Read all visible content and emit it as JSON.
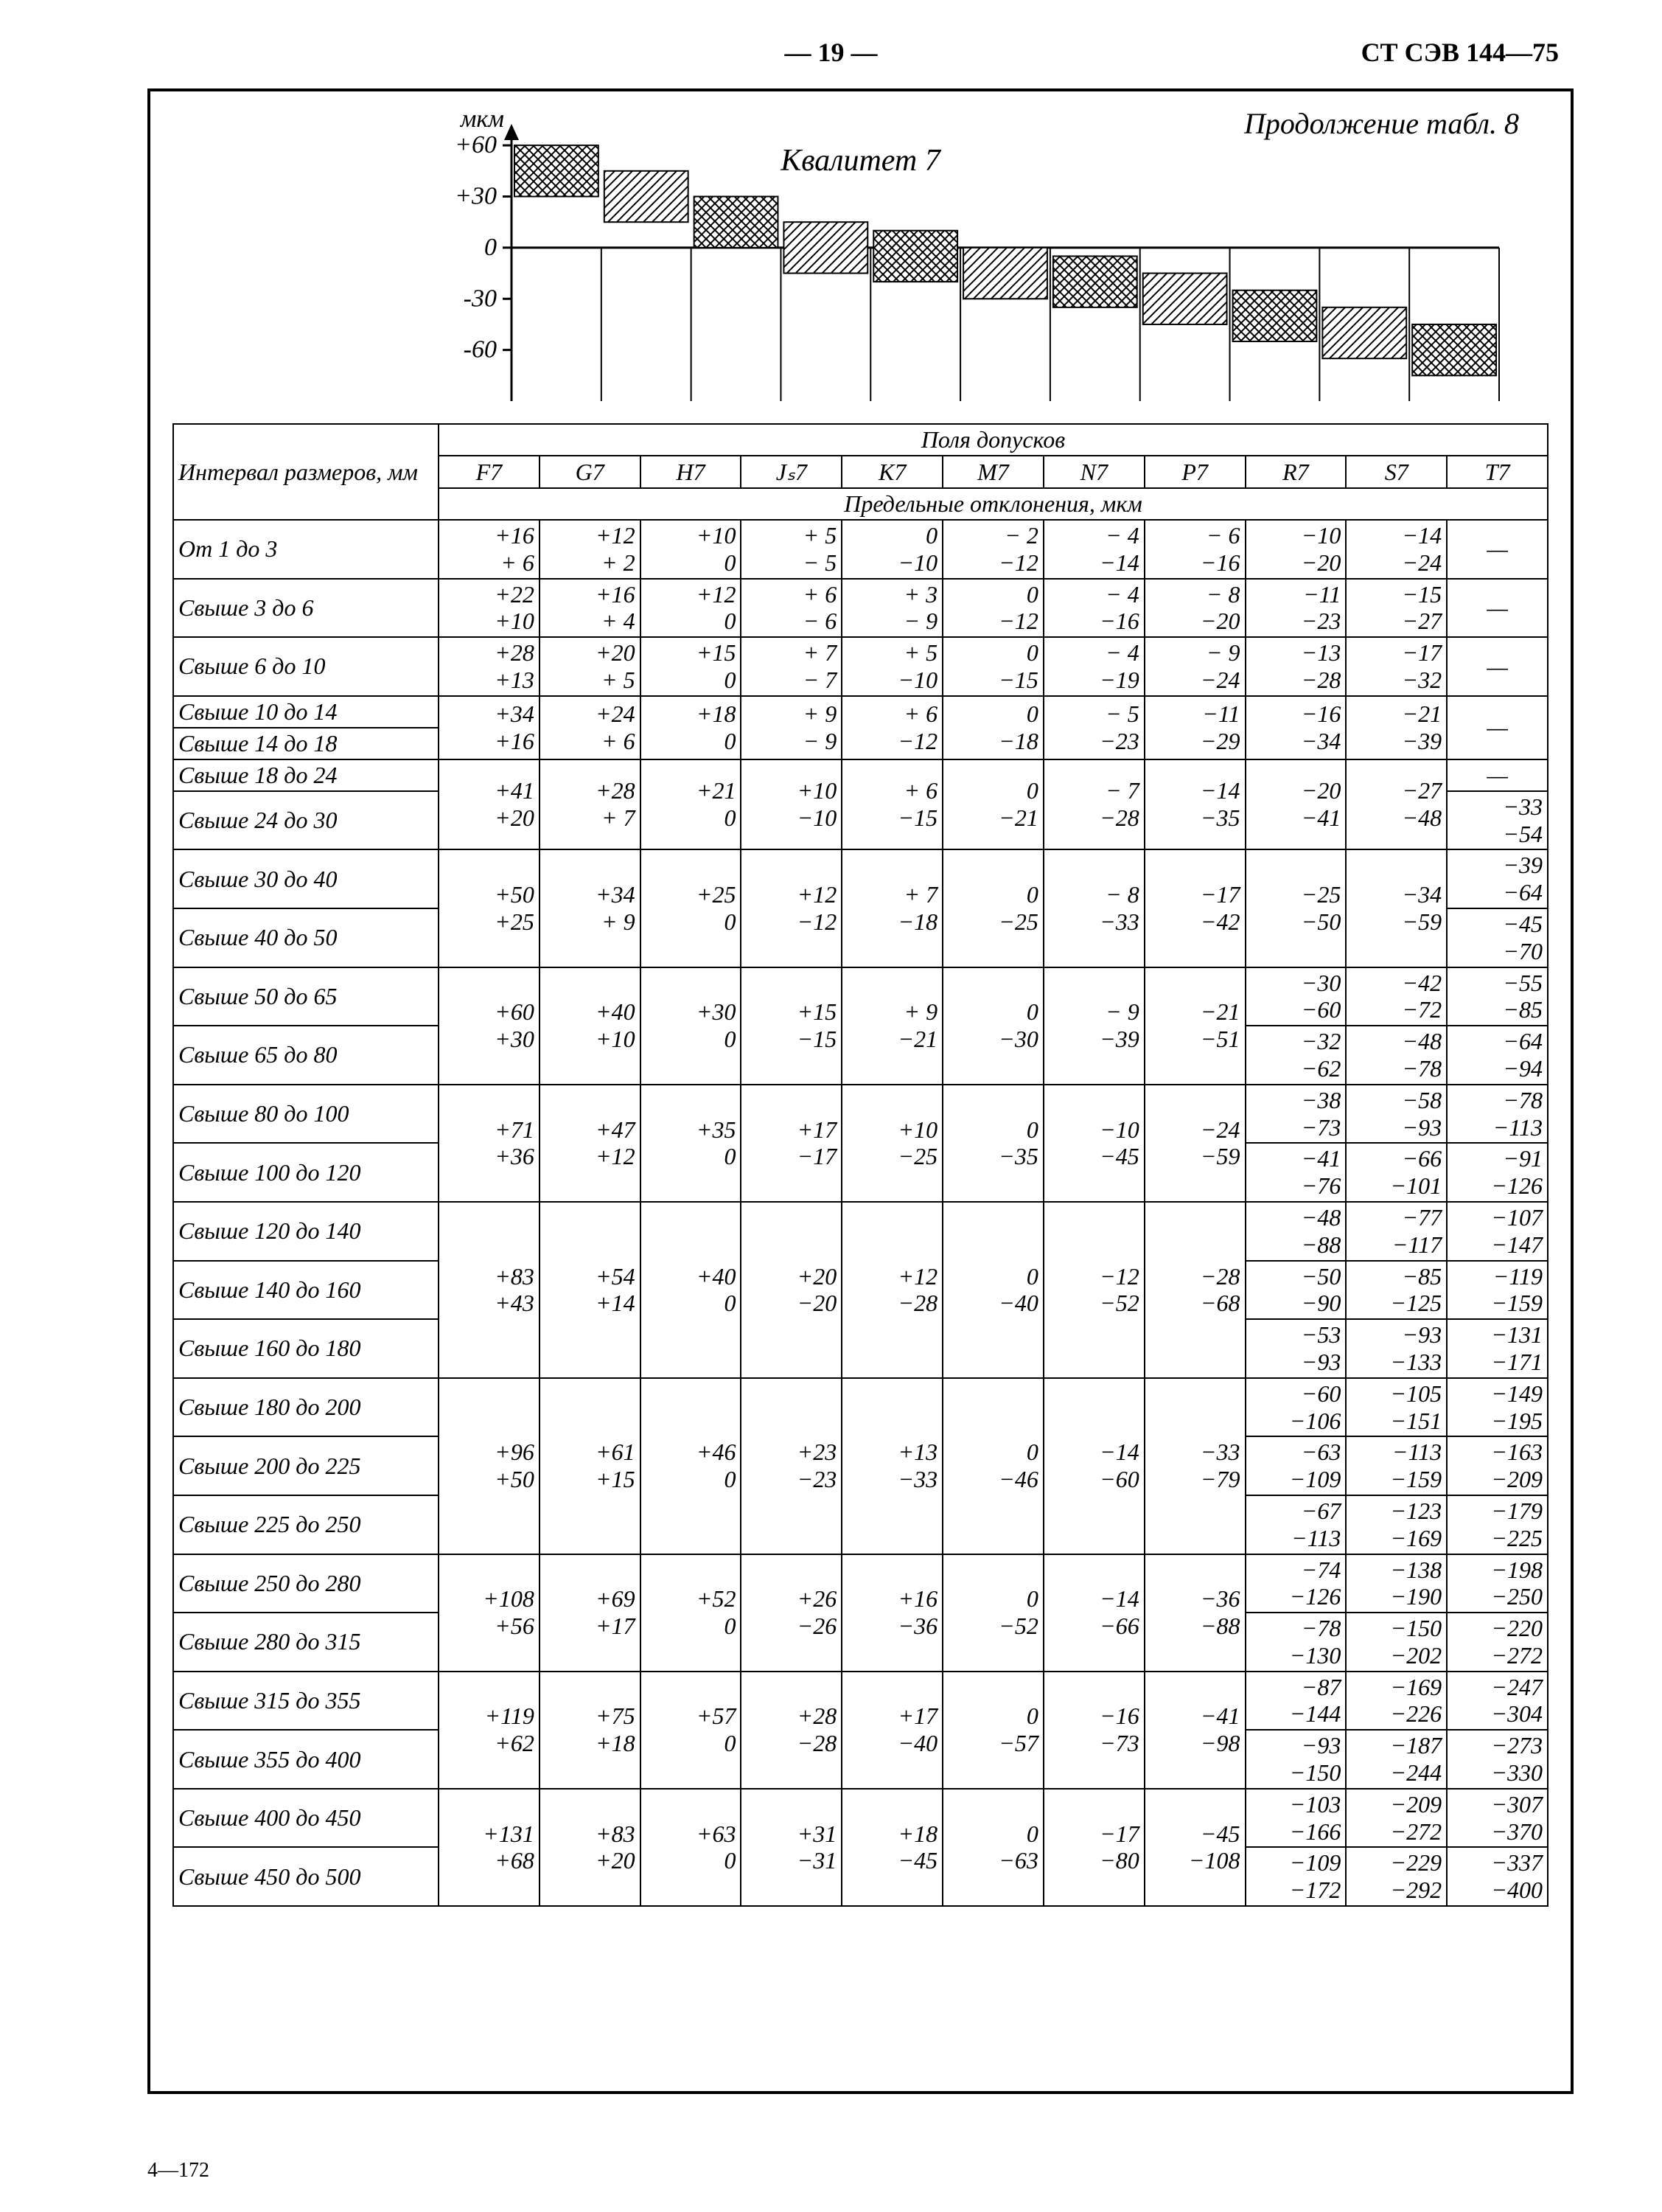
{
  "page_number_text": "— 19 —",
  "doc_code": "СТ СЭВ 144—75",
  "footer_left": "4—172",
  "continuation_label": "Продолжение табл. 8",
  "chart_title": "Квалитет 7",
  "y_axis_label": "мкм",
  "y_ticks": [
    60,
    30,
    0,
    -30,
    -60
  ],
  "interval_header": "Интервал\nразмеров,\nмм",
  "section_header_top": "Поля допусков",
  "section_header_bottom": "Предельные отклонения, мкм",
  "columns": [
    "F7",
    "G7",
    "H7",
    "Jₛ7",
    "K7",
    "M7",
    "N7",
    "P7",
    "R7",
    "S7",
    "T7"
  ],
  "chart_bars": [
    {
      "top": 60,
      "bot": 30,
      "hatch": true
    },
    {
      "top": 45,
      "bot": 15,
      "hatch": false
    },
    {
      "top": 30,
      "bot": 0,
      "hatch": true
    },
    {
      "top": 15,
      "bot": -15,
      "hatch": false
    },
    {
      "top": 10,
      "bot": -20,
      "hatch": true
    },
    {
      "top": 0,
      "bot": -30,
      "hatch": false
    },
    {
      "top": -5,
      "bot": -35,
      "hatch": true
    },
    {
      "top": -15,
      "bot": -45,
      "hatch": false
    },
    {
      "top": -25,
      "bot": -55,
      "hatch": true
    },
    {
      "top": -35,
      "bot": -65,
      "hatch": false
    },
    {
      "top": -45,
      "bot": -75,
      "hatch": true
    }
  ],
  "chart_y_range": [
    -90,
    70
  ],
  "rows": [
    {
      "label": "От 1 до 3",
      "cells": [
        [
          "+16",
          "+ 6"
        ],
        [
          "+12",
          "+ 2"
        ],
        [
          "+10",
          "0"
        ],
        [
          "+ 5",
          "− 5"
        ],
        [
          "0",
          "−10"
        ],
        [
          "− 2",
          "−12"
        ],
        [
          "− 4",
          "−14"
        ],
        [
          "− 6",
          "−16"
        ],
        [
          "−10",
          "−20"
        ],
        [
          "−14",
          "−24"
        ],
        [
          "—"
        ]
      ]
    },
    {
      "label": "Свыше 3 до 6",
      "cells": [
        [
          "+22",
          "+10"
        ],
        [
          "+16",
          "+ 4"
        ],
        [
          "+12",
          "0"
        ],
        [
          "+ 6",
          "− 6"
        ],
        [
          "+ 3",
          "− 9"
        ],
        [
          "0",
          "−12"
        ],
        [
          "− 4",
          "−16"
        ],
        [
          "− 8",
          "−20"
        ],
        [
          "−11",
          "−23"
        ],
        [
          "−15",
          "−27"
        ],
        [
          "—"
        ]
      ]
    },
    {
      "label": "Свыше 6 до 10",
      "cells": [
        [
          "+28",
          "+13"
        ],
        [
          "+20",
          "+ 5"
        ],
        [
          "+15",
          "0"
        ],
        [
          "+ 7",
          "− 7"
        ],
        [
          "+ 5",
          "−10"
        ],
        [
          "0",
          "−15"
        ],
        [
          "− 4",
          "−19"
        ],
        [
          "− 9",
          "−24"
        ],
        [
          "−13",
          "−28"
        ],
        [
          "−17",
          "−32"
        ],
        [
          "—"
        ]
      ]
    },
    {
      "label": "Свыше 10 до 14",
      "rowspan_start": true,
      "span": 2,
      "cells": [
        [
          "+34",
          "+16"
        ],
        [
          "+24",
          "+ 6"
        ],
        [
          "+18",
          "0"
        ],
        [
          "+ 9",
          "− 9"
        ],
        [
          "+ 6",
          "−12"
        ],
        [
          "0",
          "−18"
        ],
        [
          "− 5",
          "−23"
        ],
        [
          "−11",
          "−29"
        ],
        [
          "−16",
          "−34"
        ],
        [
          "−21",
          "−39"
        ],
        [
          "—"
        ]
      ]
    },
    {
      "label": "Свыше 14 до 18",
      "continuation": true
    },
    {
      "label": "Свыше 18 до 24",
      "rowspan_start": true,
      "span": 2,
      "span_cols": 10,
      "cells": [
        [
          "+41",
          "+20"
        ],
        [
          "+28",
          "+ 7"
        ],
        [
          "+21",
          "0"
        ],
        [
          "+10",
          "−10"
        ],
        [
          "+ 6",
          "−15"
        ],
        [
          "0",
          "−21"
        ],
        [
          "− 7",
          "−28"
        ],
        [
          "−14",
          "−35"
        ],
        [
          "−20",
          "−41"
        ],
        [
          "−27",
          "−48"
        ]
      ],
      "tail": [
        [
          "—"
        ]
      ]
    },
    {
      "label": "Свыше 24 до 30",
      "continuation": true,
      "tail": [
        [
          "−33",
          "−54"
        ]
      ]
    },
    {
      "label": "Свыше 30 до 40",
      "rowspan_start": true,
      "span": 2,
      "span_cols": 10,
      "cells": [
        [
          "+50",
          "+25"
        ],
        [
          "+34",
          "+ 9"
        ],
        [
          "+25",
          "0"
        ],
        [
          "+12",
          "−12"
        ],
        [
          "+ 7",
          "−18"
        ],
        [
          "0",
          "−25"
        ],
        [
          "− 8",
          "−33"
        ],
        [
          "−17",
          "−42"
        ],
        [
          "−25",
          "−50"
        ],
        [
          "−34",
          "−59"
        ]
      ],
      "tail": [
        [
          "−39",
          "−64"
        ]
      ]
    },
    {
      "label": "Свыше 40 до 50",
      "continuation": true,
      "tail": [
        [
          "−45",
          "−70"
        ]
      ]
    },
    {
      "label": "Свыше 50 до 65",
      "rowspan_start": true,
      "span": 2,
      "span_cols": 8,
      "cells": [
        [
          "+60",
          "+30"
        ],
        [
          "+40",
          "+10"
        ],
        [
          "+30",
          "0"
        ],
        [
          "+15",
          "−15"
        ],
        [
          "+ 9",
          "−21"
        ],
        [
          "0",
          "−30"
        ],
        [
          "− 9",
          "−39"
        ],
        [
          "−21",
          "−51"
        ]
      ],
      "tail": [
        [
          "−30",
          "−60"
        ],
        [
          "−42",
          "−72"
        ],
        [
          "−55",
          "−85"
        ]
      ]
    },
    {
      "label": "Свыше 65 до 80",
      "continuation": true,
      "tail": [
        [
          "−32",
          "−62"
        ],
        [
          "−48",
          "−78"
        ],
        [
          "−64",
          "−94"
        ]
      ]
    },
    {
      "label": "Свыше 80 до 100",
      "rowspan_start": true,
      "span": 2,
      "span_cols": 8,
      "cells": [
        [
          "+71",
          "+36"
        ],
        [
          "+47",
          "+12"
        ],
        [
          "+35",
          "0"
        ],
        [
          "+17",
          "−17"
        ],
        [
          "+10",
          "−25"
        ],
        [
          "0",
          "−35"
        ],
        [
          "−10",
          "−45"
        ],
        [
          "−24",
          "−59"
        ]
      ],
      "tail": [
        [
          "−38",
          "−73"
        ],
        [
          "−58",
          "−93"
        ],
        [
          "−78",
          "−113"
        ]
      ]
    },
    {
      "label": "Свыше 100 до 120",
      "continuation": true,
      "tail": [
        [
          "−41",
          "−76"
        ],
        [
          "−66",
          "−101"
        ],
        [
          "−91",
          "−126"
        ]
      ]
    },
    {
      "label": "Свыше 120 до 140",
      "rowspan_start": true,
      "span": 3,
      "span_cols": 8,
      "cells": [
        [
          "+83",
          "+43"
        ],
        [
          "+54",
          "+14"
        ],
        [
          "+40",
          "0"
        ],
        [
          "+20",
          "−20"
        ],
        [
          "+12",
          "−28"
        ],
        [
          "0",
          "−40"
        ],
        [
          "−12",
          "−52"
        ],
        [
          "−28",
          "−68"
        ]
      ],
      "tail": [
        [
          "−48",
          "−88"
        ],
        [
          "−77",
          "−117"
        ],
        [
          "−107",
          "−147"
        ]
      ]
    },
    {
      "label": "Свыше 140 до 160",
      "continuation": true,
      "tail": [
        [
          "−50",
          "−90"
        ],
        [
          "−85",
          "−125"
        ],
        [
          "−119",
          "−159"
        ]
      ]
    },
    {
      "label": "Свыше 160 до 180",
      "continuation": true,
      "tail": [
        [
          "−53",
          "−93"
        ],
        [
          "−93",
          "−133"
        ],
        [
          "−131",
          "−171"
        ]
      ]
    },
    {
      "label": "Свыше 180 до 200",
      "rowspan_start": true,
      "span": 3,
      "span_cols": 8,
      "cells": [
        [
          "+96",
          "+50"
        ],
        [
          "+61",
          "+15"
        ],
        [
          "+46",
          "0"
        ],
        [
          "+23",
          "−23"
        ],
        [
          "+13",
          "−33"
        ],
        [
          "0",
          "−46"
        ],
        [
          "−14",
          "−60"
        ],
        [
          "−33",
          "−79"
        ]
      ],
      "tail": [
        [
          "−60",
          "−106"
        ],
        [
          "−105",
          "−151"
        ],
        [
          "−149",
          "−195"
        ]
      ]
    },
    {
      "label": "Свыше 200 до 225",
      "continuation": true,
      "tail": [
        [
          "−63",
          "−109"
        ],
        [
          "−113",
          "−159"
        ],
        [
          "−163",
          "−209"
        ]
      ]
    },
    {
      "label": "Свыше 225 до 250",
      "continuation": true,
      "tail": [
        [
          "−67",
          "−113"
        ],
        [
          "−123",
          "−169"
        ],
        [
          "−179",
          "−225"
        ]
      ]
    },
    {
      "label": "Свыше 250 до 280",
      "rowspan_start": true,
      "span": 2,
      "span_cols": 8,
      "cells": [
        [
          "+108",
          "+56"
        ],
        [
          "+69",
          "+17"
        ],
        [
          "+52",
          "0"
        ],
        [
          "+26",
          "−26"
        ],
        [
          "+16",
          "−36"
        ],
        [
          "0",
          "−52"
        ],
        [
          "−14",
          "−66"
        ],
        [
          "−36",
          "−88"
        ]
      ],
      "tail": [
        [
          "−74",
          "−126"
        ],
        [
          "−138",
          "−190"
        ],
        [
          "−198",
          "−250"
        ]
      ]
    },
    {
      "label": "Свыше 280 до 315",
      "continuation": true,
      "tail": [
        [
          "−78",
          "−130"
        ],
        [
          "−150",
          "−202"
        ],
        [
          "−220",
          "−272"
        ]
      ]
    },
    {
      "label": "Свыше 315 до 355",
      "rowspan_start": true,
      "span": 2,
      "span_cols": 8,
      "cells": [
        [
          "+119",
          "+62"
        ],
        [
          "+75",
          "+18"
        ],
        [
          "+57",
          "0"
        ],
        [
          "+28",
          "−28"
        ],
        [
          "+17",
          "−40"
        ],
        [
          "0",
          "−57"
        ],
        [
          "−16",
          "−73"
        ],
        [
          "−41",
          "−98"
        ]
      ],
      "tail": [
        [
          "−87",
          "−144"
        ],
        [
          "−169",
          "−226"
        ],
        [
          "−247",
          "−304"
        ]
      ]
    },
    {
      "label": "Свыше 355 до 400",
      "continuation": true,
      "tail": [
        [
          "−93",
          "−150"
        ],
        [
          "−187",
          "−244"
        ],
        [
          "−273",
          "−330"
        ]
      ]
    },
    {
      "label": "Свыше 400 до 450",
      "rowspan_start": true,
      "span": 2,
      "span_cols": 8,
      "cells": [
        [
          "+131",
          "+68"
        ],
        [
          "+83",
          "+20"
        ],
        [
          "+63",
          "0"
        ],
        [
          "+31",
          "−31"
        ],
        [
          "+18",
          "−45"
        ],
        [
          "0",
          "−63"
        ],
        [
          "−17",
          "−80"
        ],
        [
          "−45",
          "−108"
        ]
      ],
      "tail": [
        [
          "−103",
          "−166"
        ],
        [
          "−209",
          "−272"
        ],
        [
          "−307",
          "−370"
        ]
      ]
    },
    {
      "label": "Свыше 450 до 500",
      "continuation": true,
      "tail": [
        [
          "−109",
          "−172"
        ],
        [
          "−229",
          "−292"
        ],
        [
          "−337",
          "−400"
        ]
      ]
    }
  ]
}
